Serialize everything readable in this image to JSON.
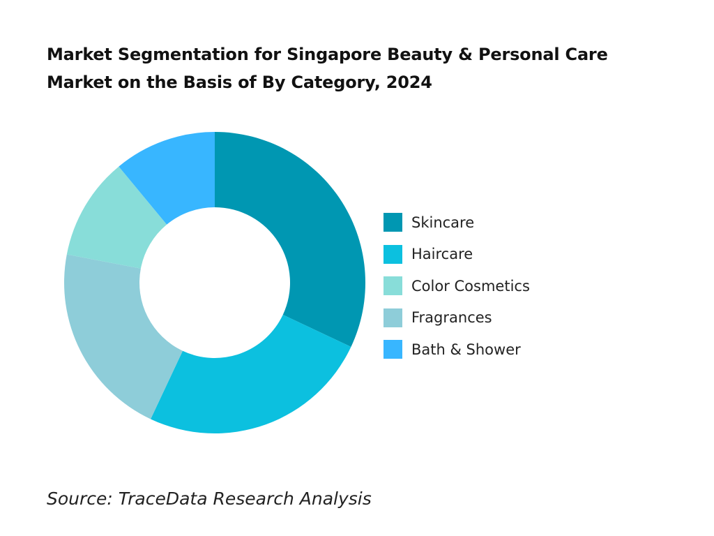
{
  "title_line1": "Market Segmentation for Singapore Beauty & Personal Care",
  "title_line2": "Market on the Basis of By Category, 2024",
  "source": "Source: TraceData Research Analysis",
  "chart_data": {
    "type": "pie",
    "donut": true,
    "legend_position": "right",
    "title": "Market Segmentation for Singapore Beauty & Personal Care Market on the Basis of By Category, 2024",
    "series": [
      {
        "name": "Skincare",
        "value": 32,
        "color": "#0097B2"
      },
      {
        "name": "Haircare",
        "value": 25,
        "color": "#0CC0DF"
      },
      {
        "name": "Fragrances",
        "value": 21,
        "color": "#8ECDD9"
      },
      {
        "name": "Color Cosmetics",
        "value": 11,
        "color": "#88DDD9"
      },
      {
        "name": "Bath & Shower",
        "value": 11,
        "color": "#38B6FF"
      }
    ],
    "legend_order": [
      "Skincare",
      "Haircare",
      "Color Cosmetics",
      "Fragrances",
      "Bath & Shower"
    ]
  }
}
